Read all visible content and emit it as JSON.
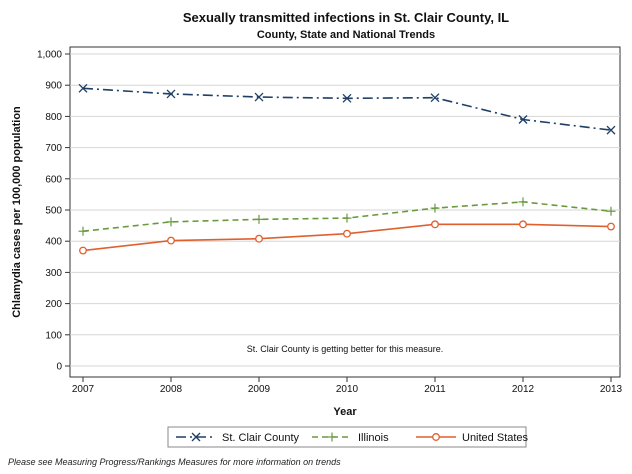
{
  "chart_data": {
    "type": "line",
    "title": "Sexually transmitted infections in St. Clair County, IL",
    "subtitle": "County, State and National Trends",
    "xlabel": "Year",
    "ylabel": "Chlamydia cases per 100,000 population",
    "categories": [
      "2007",
      "2008",
      "2009",
      "2010",
      "2011",
      "2012",
      "2013"
    ],
    "ylim": [
      0,
      1000
    ],
    "yticks": [
      0,
      100,
      200,
      300,
      400,
      500,
      600,
      700,
      800,
      900,
      1000
    ],
    "ytick_labels": [
      "0",
      "100",
      "200",
      "300",
      "400",
      "500",
      "600",
      "700",
      "800",
      "900",
      "1,000"
    ],
    "grid": true,
    "legend_position": "bottom",
    "series": [
      {
        "name": "St. Clair County",
        "values": [
          890,
          872,
          862,
          858,
          860,
          790,
          756
        ],
        "color": "#1f3f66",
        "dash": "longdash-dot",
        "marker": "x"
      },
      {
        "name": "Illinois",
        "values": [
          432,
          462,
          470,
          474,
          506,
          526,
          496
        ],
        "color": "#6a9a3e",
        "dash": "dash",
        "marker": "plus"
      },
      {
        "name": "United States",
        "values": [
          370,
          402,
          408,
          424,
          454,
          454,
          447
        ],
        "color": "#e0602d",
        "dash": "solid",
        "marker": "circle"
      }
    ],
    "annotation": "St. Clair County is getting better for this measure."
  },
  "footnote": "Please see Measuring Progress/Rankings Measures for more information on trends"
}
